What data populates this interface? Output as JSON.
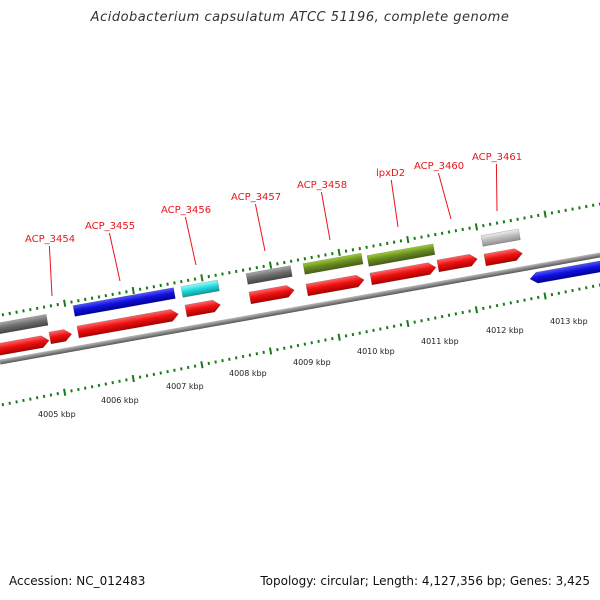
{
  "title": "Acidobacterium capsulatum ATCC 51196, complete genome",
  "accession": "Accession: NC_012483",
  "summary": "Topology: circular; Length: 4,127,356 bp; Genes: 3,425",
  "colors": {
    "label": "#e8151b",
    "backbone": "#888888",
    "tick": "#1a7a1a",
    "red": "#ee1111",
    "blue": "#1111dd",
    "cyan": "#22dddd",
    "gray": "#707070",
    "lightgray": "#c0c0c0",
    "olive": "#6b8e23"
  },
  "scale_labels": [
    "4005 kbp",
    "4006 kbp",
    "4007 kbp",
    "4008 kbp",
    "4009 kbp",
    "4010 kbp",
    "4011 kbp",
    "4012 kbp",
    "4013 kbp"
  ],
  "gene_labels": [
    "ACP_3454",
    "ACP_3455",
    "ACP_3456",
    "ACP_3457",
    "ACP_3458",
    "lpxD2",
    "ACP_3460",
    "ACP_3461"
  ]
}
